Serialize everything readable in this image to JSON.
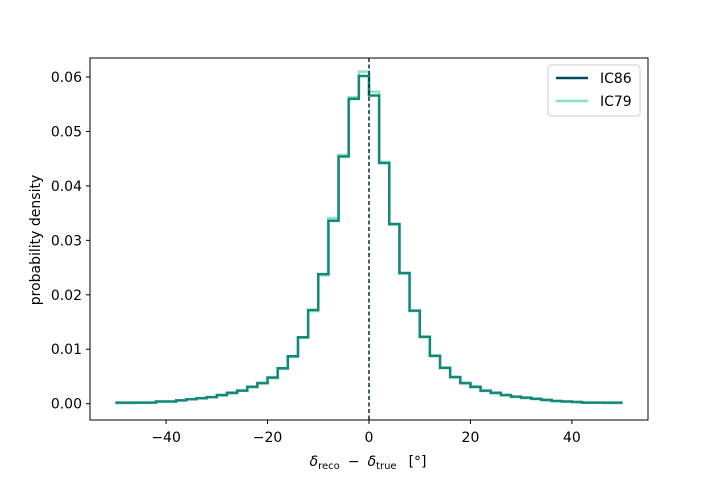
{
  "chart_data": {
    "type": "line",
    "title": "",
    "xlabel": "δ_reco − δ_true [°]",
    "xlabel_parts": {
      "delta": "δ",
      "sub1": "reco",
      "minus": "−",
      "sub2": "true",
      "unit": "[°]"
    },
    "ylabel": "probability density",
    "xlim": [
      -55,
      55
    ],
    "ylim": [
      -0.003,
      0.0635
    ],
    "xticks": [
      -40,
      -20,
      0,
      20,
      40
    ],
    "xtick_labels": [
      "−40",
      "−20",
      "0",
      "20",
      "40"
    ],
    "yticks": [
      0.0,
      0.01,
      0.02,
      0.03,
      0.04,
      0.05,
      0.06
    ],
    "ytick_labels": [
      "0.00",
      "0.01",
      "0.02",
      "0.03",
      "0.04",
      "0.05",
      "0.06"
    ],
    "grid": false,
    "legend_position": "top-right",
    "vline_x": 0,
    "bin_edges": [
      -50,
      -46,
      -42,
      -38,
      -36,
      -34,
      -32,
      -30,
      -28,
      -26,
      -24,
      -22,
      -20,
      -18,
      -16,
      -14,
      -12,
      -10,
      -8,
      -6,
      -4,
      -2,
      0,
      2,
      4,
      6,
      8,
      10,
      12,
      14,
      16,
      18,
      20,
      22,
      24,
      26,
      28,
      30,
      32,
      34,
      36,
      38,
      40,
      42,
      46,
      50
    ],
    "series": [
      {
        "name": "IC86",
        "color": "#004b63",
        "values": [
          0.0002,
          0.0002,
          0.0004,
          0.0006,
          0.0008,
          0.001,
          0.0012,
          0.0016,
          0.002,
          0.0024,
          0.0031,
          0.0038,
          0.0048,
          0.0065,
          0.0087,
          0.0122,
          0.0172,
          0.0238,
          0.0336,
          0.0454,
          0.056,
          0.0602,
          0.0566,
          0.0442,
          0.033,
          0.024,
          0.0171,
          0.0123,
          0.0088,
          0.0066,
          0.0049,
          0.0038,
          0.0031,
          0.0024,
          0.002,
          0.0016,
          0.0013,
          0.0011,
          0.0009,
          0.0007,
          0.0005,
          0.0004,
          0.0003,
          0.0002,
          0.0002
        ]
      },
      {
        "name": "IC79",
        "color": "#88e5ba",
        "values": [
          0.0001,
          0.0002,
          0.0004,
          0.0006,
          0.0008,
          0.001,
          0.0012,
          0.0015,
          0.0019,
          0.0024,
          0.003,
          0.0037,
          0.0047,
          0.0064,
          0.0086,
          0.0121,
          0.017,
          0.0236,
          0.0341,
          0.0457,
          0.0563,
          0.061,
          0.0573,
          0.0444,
          0.0329,
          0.0239,
          0.017,
          0.0122,
          0.0087,
          0.0065,
          0.0048,
          0.0037,
          0.003,
          0.0023,
          0.0019,
          0.0015,
          0.0012,
          0.001,
          0.0008,
          0.0006,
          0.0005,
          0.0004,
          0.0003,
          0.0002,
          0.0001
        ]
      }
    ],
    "overlap_color": "#14877a"
  }
}
